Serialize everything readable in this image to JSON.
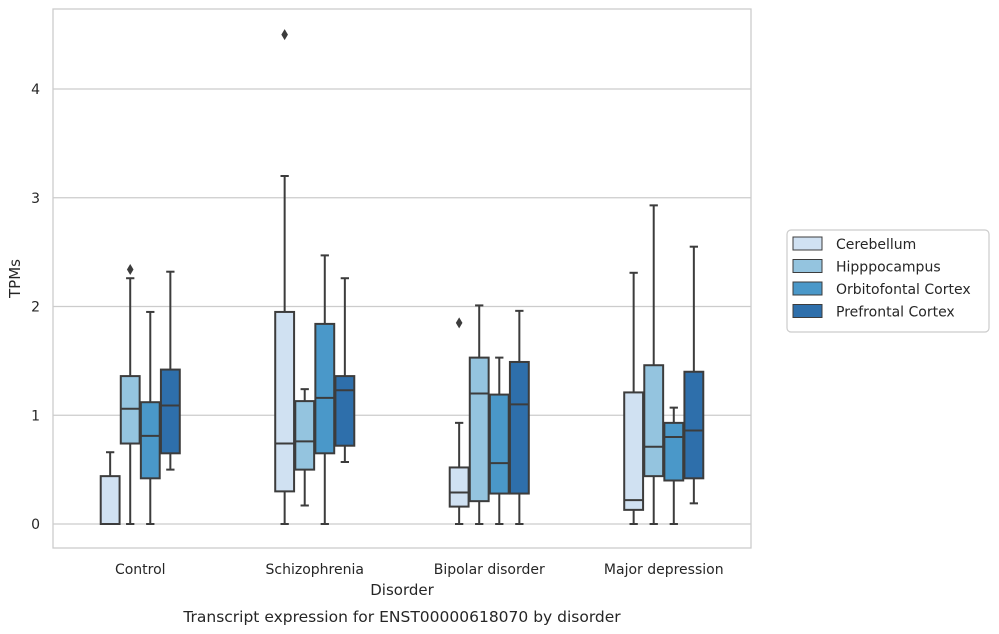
{
  "chart_data": {
    "type": "boxplot",
    "title": "Transcript expression for ENST00000618070 by disorder",
    "xlabel": "Disorder",
    "ylabel": "TPMs",
    "ylim": [
      -0.22,
      4.75
    ],
    "yticks": [
      0,
      1,
      2,
      3,
      4
    ],
    "grid": "horizontal",
    "legend_position": "right",
    "categories": [
      "Control",
      "Schizophrenia",
      "Bipolar disorder",
      "Major depression"
    ],
    "series": [
      {
        "name": "Cerebellum",
        "color": "#d0e1f2",
        "boxes": [
          {
            "whislo": 0.0,
            "q1": 0.0,
            "med": 0.0,
            "q3": 0.44,
            "whishi": 0.66,
            "fliers": []
          },
          {
            "whislo": 0.0,
            "q1": 0.3,
            "med": 0.74,
            "q3": 1.95,
            "whishi": 3.2,
            "fliers": [
              4.5
            ]
          },
          {
            "whislo": 0.0,
            "q1": 0.16,
            "med": 0.29,
            "q3": 0.52,
            "whishi": 0.93,
            "fliers": [
              1.85
            ]
          },
          {
            "whislo": 0.0,
            "q1": 0.13,
            "med": 0.22,
            "q3": 1.21,
            "whishi": 2.31,
            "fliers": []
          }
        ]
      },
      {
        "name": "Hipppocampus",
        "color": "#94c4df",
        "boxes": [
          {
            "whislo": 0.0,
            "q1": 0.74,
            "med": 1.06,
            "q3": 1.36,
            "whishi": 2.26,
            "fliers": [
              2.34
            ]
          },
          {
            "whislo": 0.17,
            "q1": 0.5,
            "med": 0.76,
            "q3": 1.13,
            "whishi": 1.24,
            "fliers": []
          },
          {
            "whislo": 0.0,
            "q1": 0.21,
            "med": 1.2,
            "q3": 1.53,
            "whishi": 2.01,
            "fliers": []
          },
          {
            "whislo": 0.0,
            "q1": 0.44,
            "med": 0.71,
            "q3": 1.46,
            "whishi": 2.93,
            "fliers": []
          }
        ]
      },
      {
        "name": "Orbitofontal Cortex",
        "color": "#4a98c9",
        "boxes": [
          {
            "whislo": 0.0,
            "q1": 0.42,
            "med": 0.81,
            "q3": 1.12,
            "whishi": 1.95,
            "fliers": []
          },
          {
            "whislo": 0.0,
            "q1": 0.65,
            "med": 1.16,
            "q3": 1.84,
            "whishi": 2.47,
            "fliers": []
          },
          {
            "whislo": 0.0,
            "q1": 0.28,
            "med": 0.56,
            "q3": 1.19,
            "whishi": 1.53,
            "fliers": []
          },
          {
            "whislo": 0.0,
            "q1": 0.4,
            "med": 0.8,
            "q3": 0.93,
            "whishi": 1.07,
            "fliers": []
          }
        ]
      },
      {
        "name": "Prefrontal Cortex",
        "color": "#2e6fab",
        "boxes": [
          {
            "whislo": 0.5,
            "q1": 0.65,
            "med": 1.09,
            "q3": 1.42,
            "whishi": 2.32,
            "fliers": []
          },
          {
            "whislo": 0.57,
            "q1": 0.72,
            "med": 1.23,
            "q3": 1.36,
            "whishi": 2.26,
            "fliers": []
          },
          {
            "whislo": 0.0,
            "q1": 0.28,
            "med": 1.1,
            "q3": 1.49,
            "whishi": 1.96,
            "fliers": []
          },
          {
            "whislo": 0.19,
            "q1": 0.42,
            "med": 0.86,
            "q3": 1.4,
            "whishi": 2.55,
            "fliers": []
          }
        ]
      }
    ]
  }
}
